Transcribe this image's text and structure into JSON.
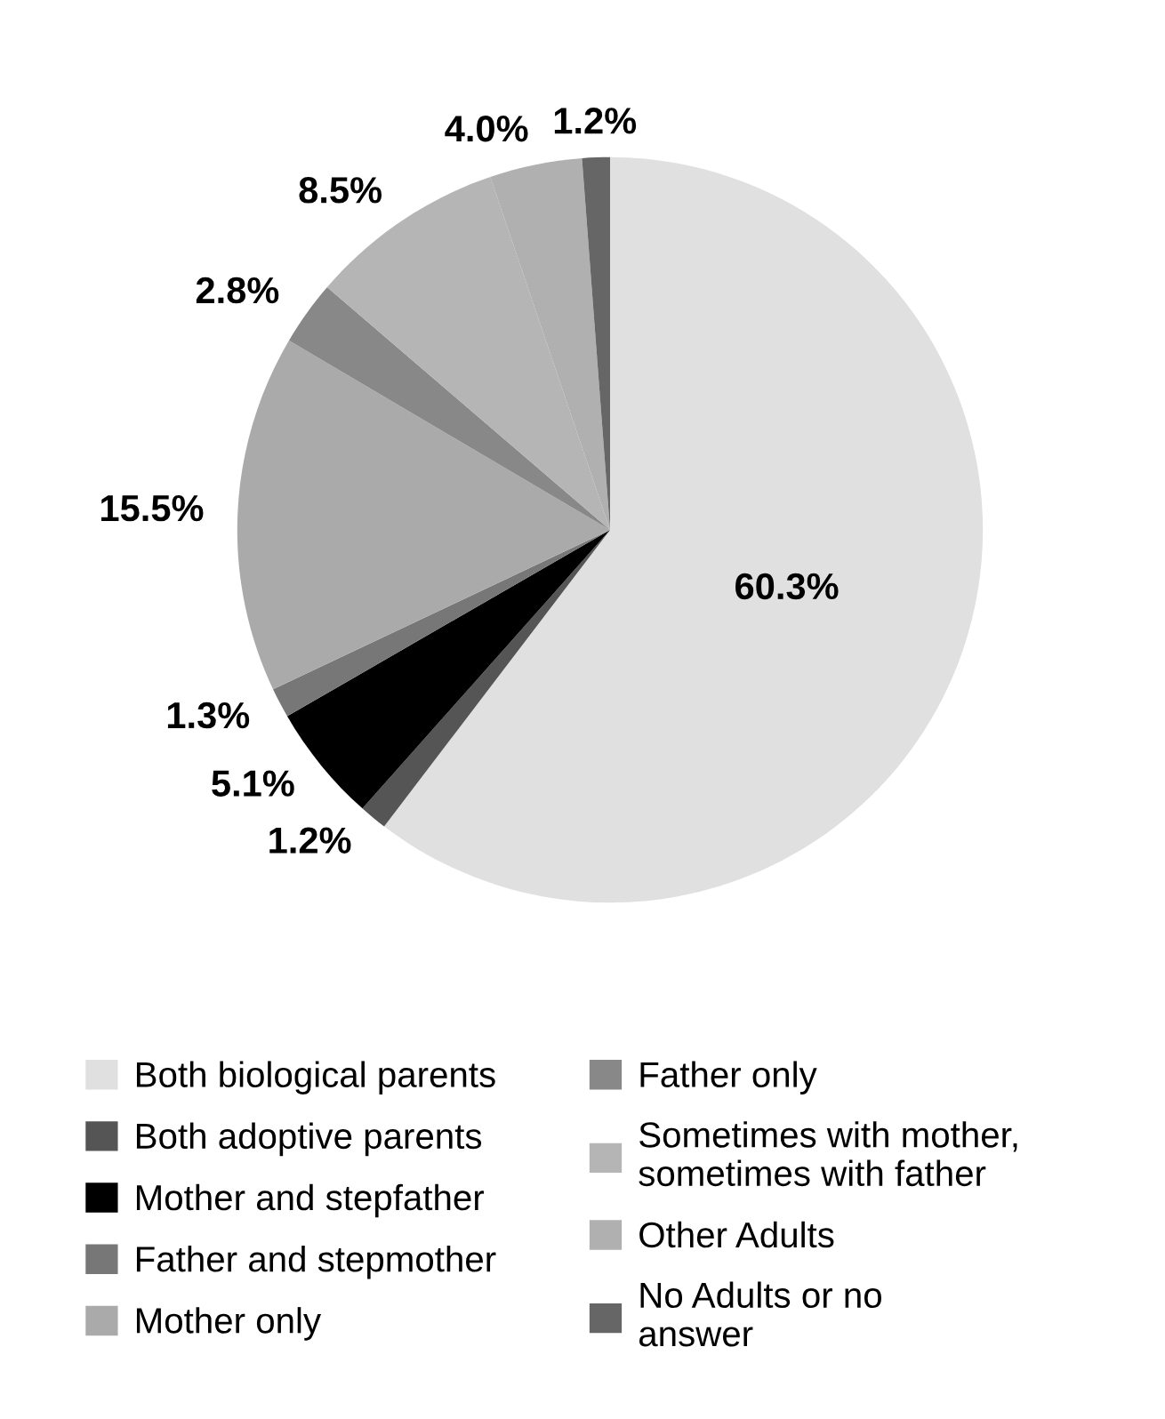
{
  "chart_data": {
    "type": "pie",
    "categories": [
      "Both biological parents",
      "Both adoptive parents",
      "Mother and stepfather",
      "Father and stepmother",
      "Mother only",
      "Father only",
      "Sometimes with mother,\nsometimes with father",
      "Other Adults",
      "No Adults or no\nanswer"
    ],
    "values": [
      60.3,
      1.2,
      5.1,
      1.3,
      15.5,
      2.8,
      8.5,
      4.0,
      1.2
    ],
    "colors": [
      "#e0e0e0",
      "#555555",
      "#000000",
      "#777777",
      "#aaaaaa",
      "#888888",
      "#b5b5b5",
      "#b0b0b0",
      "#666666"
    ],
    "value_labels": [
      "60.3%",
      "1.2%",
      "5.1%",
      "1.3%",
      "15.5%",
      "2.8%",
      "8.5%",
      "4.0%",
      "1.2%"
    ],
    "legend": "bottom"
  }
}
